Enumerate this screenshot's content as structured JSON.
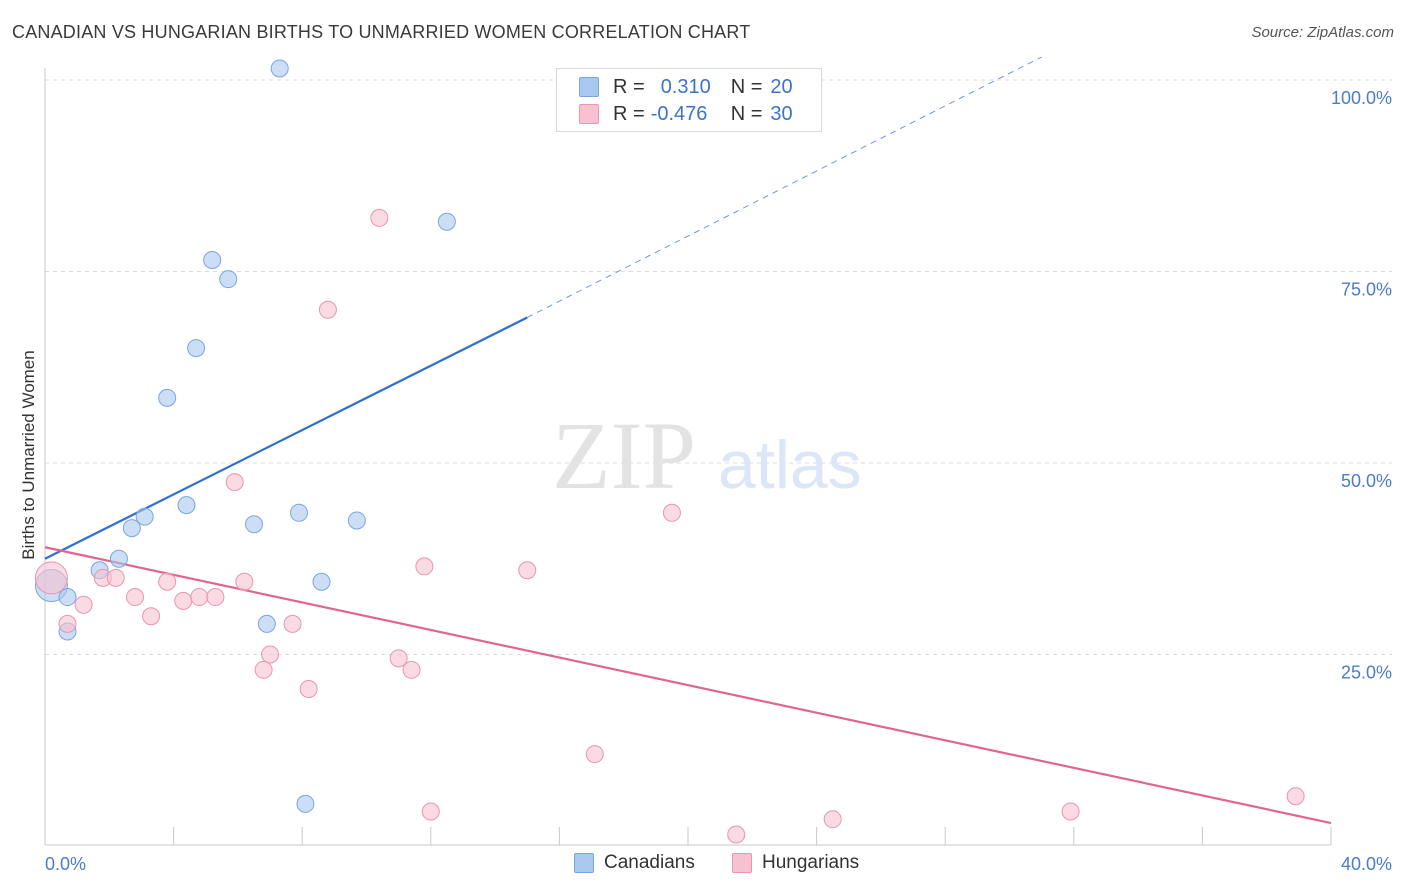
{
  "title": "CANADIAN VS HUNGARIAN BIRTHS TO UNMARRIED WOMEN CORRELATION CHART",
  "source": "Source: ZipAtlas.com",
  "watermark": {
    "zip": "ZIP",
    "atlas": "atlas"
  },
  "legend": {
    "rows": [
      {
        "r_label": "R =",
        "r_value": "0.310",
        "n_label": "N =",
        "n_value": "20",
        "color": "#a9c8f0",
        "border": "#7aa6e0"
      },
      {
        "r_label": "R =",
        "r_value": "-0.476",
        "n_label": "N =",
        "n_value": "30",
        "color": "#f7c1d1",
        "border": "#e996b0"
      }
    ]
  },
  "bottom_legend": {
    "canadians": "Canadians",
    "hungarians": "Hungarians"
  },
  "chart_data": {
    "type": "scatter",
    "ylabel": "Births to Unmarried Women",
    "xlabel": "",
    "xlim": [
      0,
      40
    ],
    "ylim": [
      0,
      100
    ],
    "x_tick_labels": [
      "0.0%",
      "40.0%"
    ],
    "y_ticks": [
      25,
      50,
      75,
      100
    ],
    "y_tick_labels": [
      "25.0%",
      "50.0%",
      "75.0%",
      "100.0%"
    ],
    "grid": true,
    "series": [
      {
        "name": "Canadians",
        "color": "#a9c8f0",
        "stroke": "#7aa6e0",
        "line_color": "#2f6fcf",
        "trend": {
          "x0": 0,
          "y0": 37.5,
          "x1": 15,
          "y1": 69.0,
          "dash_to_x": 31,
          "dash_to_y": 103
        },
        "points": [
          {
            "x": 0.2,
            "y": 34.0,
            "big": true
          },
          {
            "x": 0.7,
            "y": 32.5
          },
          {
            "x": 0.7,
            "y": 28.0
          },
          {
            "x": 1.7,
            "y": 36.0
          },
          {
            "x": 2.3,
            "y": 37.5
          },
          {
            "x": 2.7,
            "y": 41.5
          },
          {
            "x": 3.1,
            "y": 43.0
          },
          {
            "x": 3.8,
            "y": 58.5
          },
          {
            "x": 4.4,
            "y": 44.5
          },
          {
            "x": 4.7,
            "y": 65.0
          },
          {
            "x": 5.2,
            "y": 76.5
          },
          {
            "x": 5.7,
            "y": 74.0
          },
          {
            "x": 6.5,
            "y": 42.0
          },
          {
            "x": 6.9,
            "y": 29.0
          },
          {
            "x": 7.3,
            "y": 101.5
          },
          {
            "x": 7.9,
            "y": 43.5
          },
          {
            "x": 8.1,
            "y": 5.5
          },
          {
            "x": 8.6,
            "y": 34.5
          },
          {
            "x": 9.7,
            "y": 42.5
          },
          {
            "x": 12.5,
            "y": 81.5
          }
        ]
      },
      {
        "name": "Hungarians",
        "color": "#f7c1d1",
        "stroke": "#e996b0",
        "line_color": "#e0668f",
        "trend": {
          "x0": 0,
          "y0": 39.0,
          "x1": 40,
          "y1": 3.0
        },
        "points": [
          {
            "x": 0.2,
            "y": 35.0,
            "big": true
          },
          {
            "x": 0.7,
            "y": 29.0
          },
          {
            "x": 1.2,
            "y": 31.5
          },
          {
            "x": 1.8,
            "y": 35.0
          },
          {
            "x": 2.2,
            "y": 35.0
          },
          {
            "x": 2.8,
            "y": 32.5
          },
          {
            "x": 3.3,
            "y": 30.0
          },
          {
            "x": 3.8,
            "y": 34.5
          },
          {
            "x": 4.3,
            "y": 32.0
          },
          {
            "x": 4.8,
            "y": 32.5
          },
          {
            "x": 5.3,
            "y": 32.5
          },
          {
            "x": 5.9,
            "y": 47.5
          },
          {
            "x": 6.2,
            "y": 34.5
          },
          {
            "x": 6.8,
            "y": 23.0
          },
          {
            "x": 7.0,
            "y": 25.0
          },
          {
            "x": 7.7,
            "y": 29.0
          },
          {
            "x": 8.2,
            "y": 20.5
          },
          {
            "x": 8.8,
            "y": 70.0
          },
          {
            "x": 10.4,
            "y": 82.0
          },
          {
            "x": 11.0,
            "y": 24.5
          },
          {
            "x": 11.4,
            "y": 23.0
          },
          {
            "x": 11.8,
            "y": 36.5
          },
          {
            "x": 12.0,
            "y": 4.5
          },
          {
            "x": 15.0,
            "y": 36.0
          },
          {
            "x": 17.1,
            "y": 12.0
          },
          {
            "x": 19.5,
            "y": 43.5
          },
          {
            "x": 21.5,
            "y": 1.5
          },
          {
            "x": 24.5,
            "y": 3.5
          },
          {
            "x": 31.9,
            "y": 4.5
          },
          {
            "x": 38.9,
            "y": 6.5
          }
        ]
      }
    ]
  }
}
